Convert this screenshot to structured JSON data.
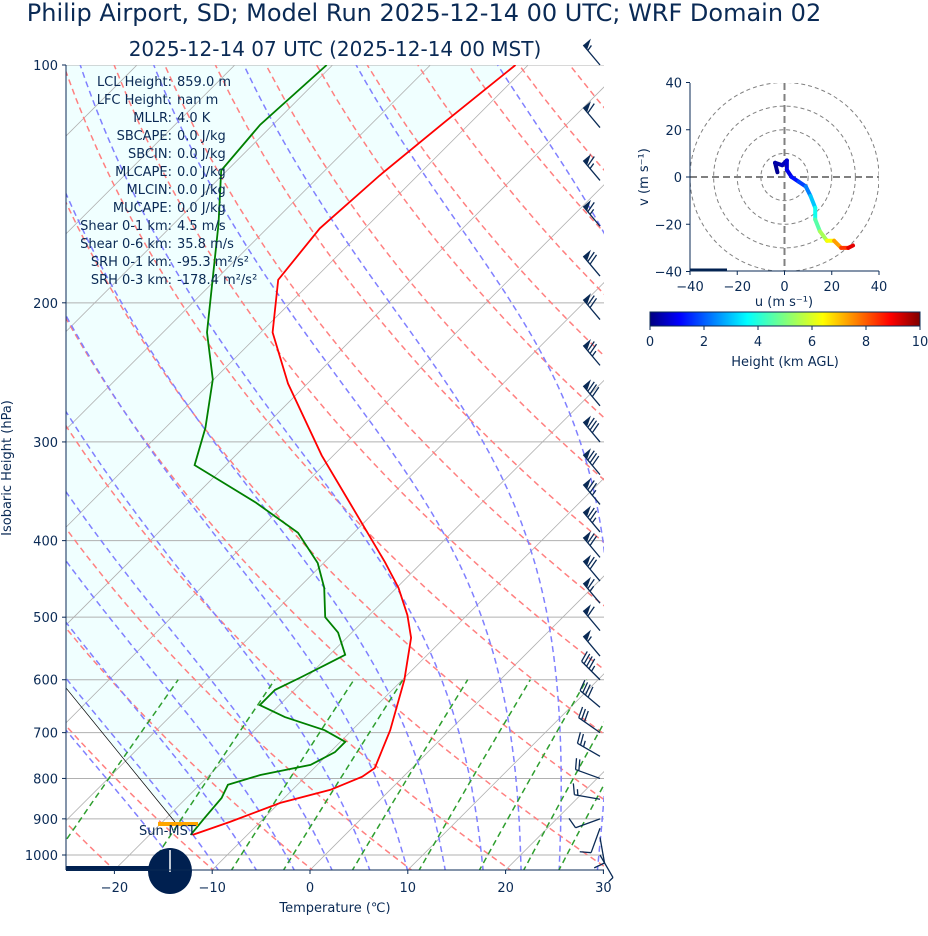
{
  "title": "Philip Airport, SD; Model Run 2025-12-14 00 UTC; WRF Domain 02",
  "subtitle": "2025-12-14 07 UTC  (2025-12-14 00 MST)",
  "colors": {
    "text": "#0a2a55",
    "temperature": "#ff0000",
    "dewpoint": "#008000",
    "dry_adiabat": "#ff8080",
    "moist_adiabat": "#8080ff",
    "mixing_ratio": "#2e9e2e",
    "cin_fill": "#f0ffff",
    "sun_bar": "#ffa500",
    "barb": "#0a2a55"
  },
  "stats": [
    {
      "label": "LCL Height:",
      "value": "859.0 m"
    },
    {
      "label": "LFC Height:",
      "value": "nan m"
    },
    {
      "label": "MLLR:",
      "value": "4.0 K"
    },
    {
      "label": "SBCAPE:",
      "value": "0.0 J/kg"
    },
    {
      "label": "SBCIN:",
      "value": "0.0 J/kg"
    },
    {
      "label": "MLCAPE:",
      "value": "0.0 J/kg"
    },
    {
      "label": "MLCIN:",
      "value": "0.0 J/kg"
    },
    {
      "label": "MUCAPE:",
      "value": "0.0 J/kg"
    },
    {
      "label": "Shear 0-1 km:",
      "value": "4.5 m/s"
    },
    {
      "label": "Shear 0-6 km:",
      "value": "35.8 m/s"
    },
    {
      "label": "SRH 0-1 km:",
      "value": "-95.3 m²/s²"
    },
    {
      "label": "SRH 0-3 km:",
      "value": "-178.4 m²/s²"
    }
  ],
  "sun_label": "Sun-MST",
  "chart_data": [
    {
      "type": "line",
      "subtype": "skew-t",
      "xlabel": "Temperature (℃)",
      "ylabel": "Isobaric Height (hPa)",
      "xlim": [
        -25,
        30
      ],
      "ylim": [
        1050,
        100
      ],
      "yscale": "log",
      "xticks": [
        -20,
        -10,
        0,
        10,
        20,
        30
      ],
      "yticks": [
        100,
        200,
        300,
        400,
        500,
        600,
        700,
        800,
        900,
        1000
      ],
      "grid": true,
      "series": [
        {
          "kind": "temperature",
          "color": "#ff0000",
          "points": [
            [
              943,
              -15.6
            ],
            [
              908,
              -13.1
            ],
            [
              859,
              -9.9
            ],
            [
              827,
              -6.1
            ],
            [
              796,
              -4.2
            ],
            [
              776,
              -3.8
            ],
            [
              695,
              -6.1
            ],
            [
              600,
              -9.8
            ],
            [
              531,
              -13.4
            ],
            [
              497,
              -16.1
            ],
            [
              459,
              -19.8
            ],
            [
              426,
              -23.8
            ],
            [
              360,
              -33.2
            ],
            [
              312,
              -41.2
            ],
            [
              253,
              -52.0
            ],
            [
              218,
              -58.8
            ],
            [
              187,
              -63.6
            ],
            [
              161,
              -64.6
            ],
            [
              138,
              -63.9
            ],
            [
              118,
              -62.7
            ],
            [
              100,
              -61.3
            ]
          ]
        },
        {
          "kind": "dewpoint",
          "color": "#008000",
          "points": [
            [
              943,
              -15.8
            ],
            [
              898,
              -16.1
            ],
            [
              847,
              -16.4
            ],
            [
              815,
              -17.1
            ],
            [
              792,
              -14.8
            ],
            [
              769,
              -10.7
            ],
            [
              741,
              -9.5
            ],
            [
              719,
              -9.5
            ],
            [
              695,
              -12.8
            ],
            [
              669,
              -18.2
            ],
            [
              646,
              -22.0
            ],
            [
              618,
              -22.0
            ],
            [
              597,
              -20.7
            ],
            [
              575,
              -19.4
            ],
            [
              558,
              -18.4
            ],
            [
              523,
              -21.4
            ],
            [
              500,
              -24.3
            ],
            [
              459,
              -27.4
            ],
            [
              427,
              -30.6
            ],
            [
              391,
              -35.7
            ],
            [
              358,
              -43.1
            ],
            [
              321,
              -53.2
            ],
            [
              288,
              -55.9
            ],
            [
              250,
              -60.1
            ],
            [
              218,
              -65.5
            ],
            [
              159,
              -75.4
            ],
            [
              136,
              -80.6
            ],
            [
              119,
              -81.3
            ],
            [
              100,
              -80.6
            ]
          ]
        }
      ],
      "winds_kt": [
        [
          1000,
          5,
          150
        ],
        [
          950,
          10,
          170
        ],
        [
          925,
          12,
          200
        ],
        [
          900,
          10,
          250
        ],
        [
          850,
          15,
          280
        ],
        [
          800,
          20,
          290
        ],
        [
          750,
          25,
          300
        ],
        [
          700,
          30,
          305
        ],
        [
          650,
          40,
          310
        ],
        [
          600,
          45,
          315
        ],
        [
          560,
          55,
          320
        ],
        [
          520,
          60,
          320
        ],
        [
          480,
          65,
          320
        ],
        [
          450,
          70,
          320
        ],
        [
          420,
          70,
          320
        ],
        [
          390,
          75,
          320
        ],
        [
          360,
          75,
          320
        ],
        [
          330,
          80,
          320
        ],
        [
          300,
          80,
          320
        ],
        [
          270,
          80,
          320
        ],
        [
          240,
          75,
          320
        ],
        [
          210,
          70,
          320
        ],
        [
          185,
          70,
          320
        ],
        [
          160,
          65,
          320
        ],
        [
          140,
          65,
          320
        ],
        [
          120,
          60,
          320
        ],
        [
          100,
          55,
          320
        ]
      ]
    },
    {
      "type": "line",
      "subtype": "hodograph",
      "xlabel": "u (m s$^{-1}$)",
      "xlabel_display": "u (m s⁻¹)",
      "ylabel_display": "v (m s⁻¹)",
      "xlim": [
        -40,
        40
      ],
      "ylim": [
        -40,
        40
      ],
      "xticks": [
        -40,
        -20,
        0,
        20,
        40
      ],
      "yticks": [
        -40,
        -20,
        0,
        20,
        40
      ],
      "rings": [
        10,
        20,
        30,
        40
      ],
      "points_u_v_km": [
        [
          -3,
          2,
          0
        ],
        [
          -4,
          6,
          0.2
        ],
        [
          -1,
          5,
          0.4
        ],
        [
          1,
          7,
          0.6
        ],
        [
          1,
          3,
          0.8
        ],
        [
          3,
          0,
          1.0
        ],
        [
          6,
          -2,
          1.4
        ],
        [
          9,
          -4,
          1.9
        ],
        [
          11,
          -8,
          2.5
        ],
        [
          13,
          -13,
          3.2
        ],
        [
          13,
          -18,
          3.9
        ],
        [
          15,
          -23,
          4.6
        ],
        [
          18,
          -27,
          5.4
        ],
        [
          21,
          -27,
          6.2
        ],
        [
          24,
          -30,
          7.2
        ],
        [
          27,
          -30,
          8.2
        ],
        [
          29,
          -29,
          9.0
        ]
      ],
      "colorbar": {
        "label": "Height (km AGL)",
        "range": [
          0,
          10
        ],
        "ticks": [
          0,
          2,
          4,
          6,
          8,
          10
        ],
        "colormap": "jet"
      }
    }
  ]
}
